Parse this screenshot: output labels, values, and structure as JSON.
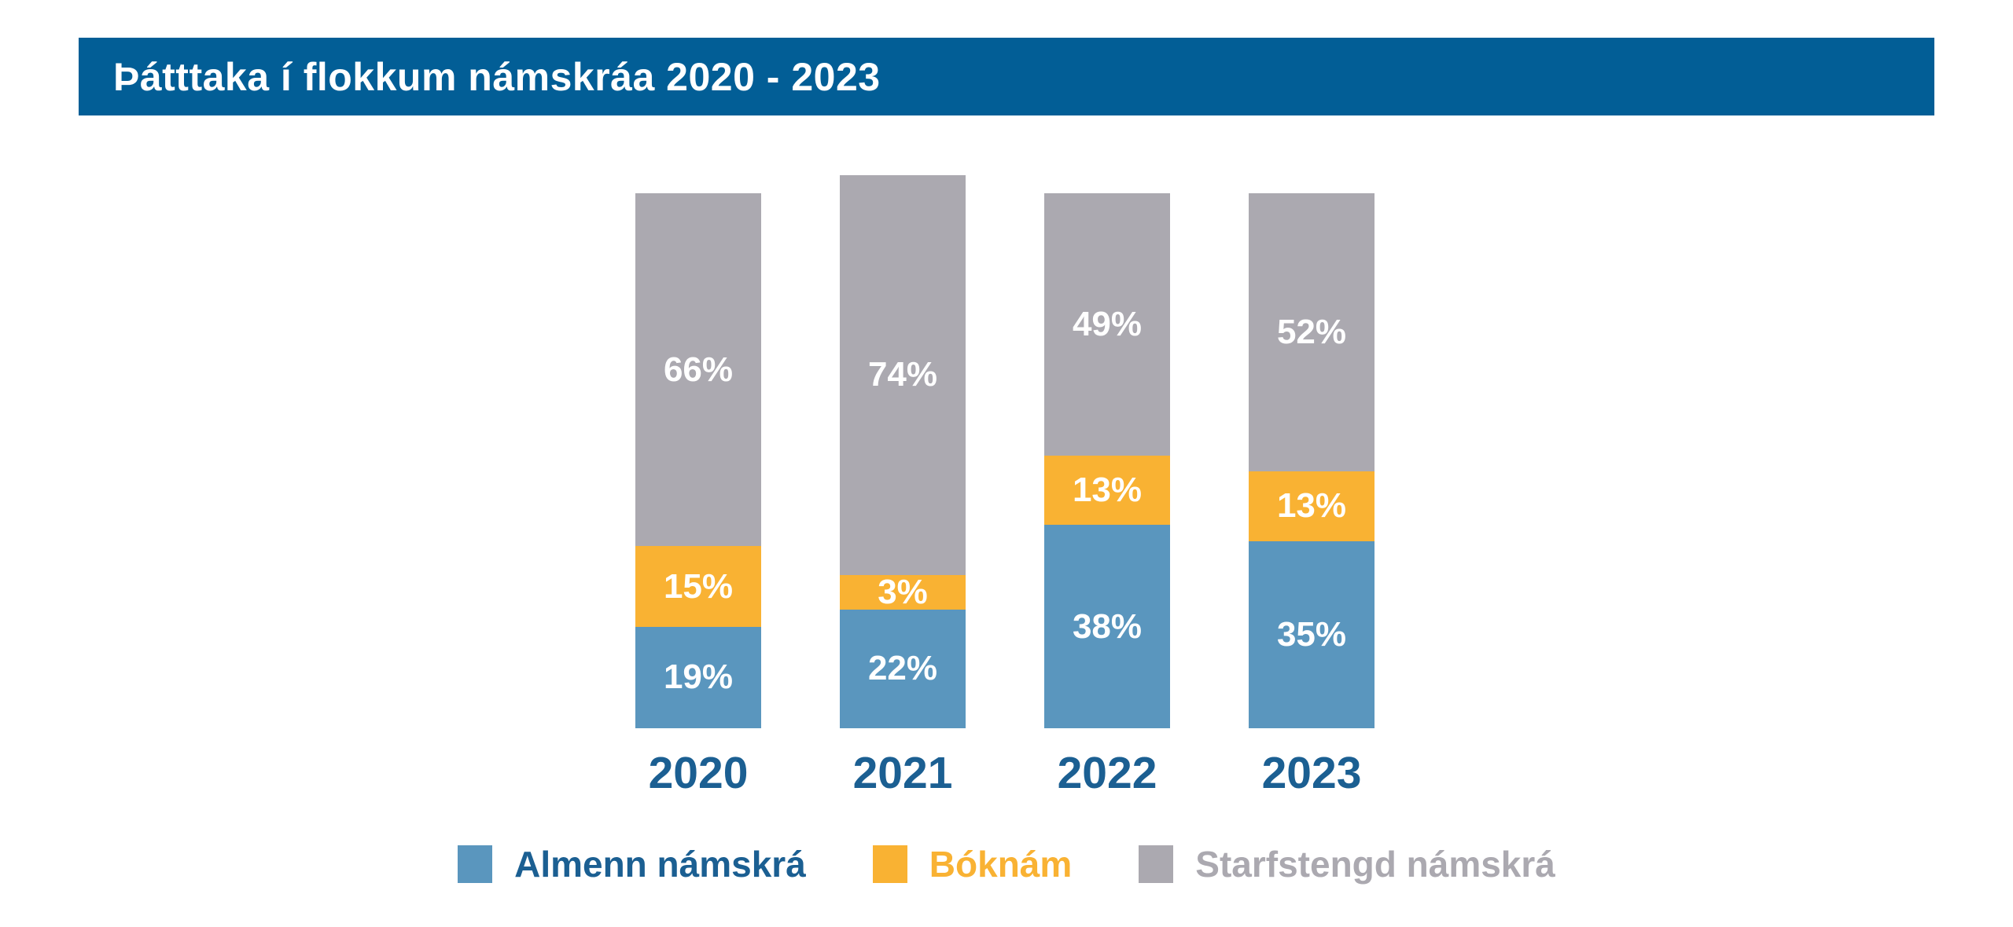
{
  "header": {
    "title": "Þátttaka í flokkum námskráa 2020 - 2023"
  },
  "colors": {
    "background": "#FFFFFF",
    "header_bg": "#025E96",
    "header_text": "#FFFFFF",
    "axis_label": "#1B5F92",
    "value_label": "#FFFFFF"
  },
  "chart_data": {
    "type": "bar",
    "variant": "stacked-100-percent-column",
    "title": "Þátttaka í flokkum námskráa 2020 - 2023",
    "categories": [
      "2020",
      "2021",
      "2022",
      "2023"
    ],
    "series": [
      {
        "name": "Almenn námskrá",
        "color": "#5A96BE",
        "values": [
          19,
          22,
          38,
          35
        ]
      },
      {
        "name": "Bóknám",
        "color": "#F9B233",
        "values": [
          15,
          3,
          13,
          13
        ]
      },
      {
        "name": "Starfstengd námskrá",
        "color": "#ABA9B0",
        "values": [
          66,
          74,
          49,
          52
        ]
      }
    ],
    "value_suffix": "%",
    "xlabel": "",
    "ylabel": "",
    "ylim": [
      0,
      100
    ],
    "grid": false,
    "axes_visible": false,
    "legend_position": "bottom",
    "legend": [
      {
        "label": "Almenn námskrá",
        "swatch": "#5A96BE",
        "text_color": "#1B5F92"
      },
      {
        "label": "Bóknám",
        "swatch": "#F9B233",
        "text_color": "#F9B233"
      },
      {
        "label": "Starfstengd námskrá",
        "swatch": "#ABA9B0",
        "text_color": "#ABA9B0"
      }
    ]
  }
}
